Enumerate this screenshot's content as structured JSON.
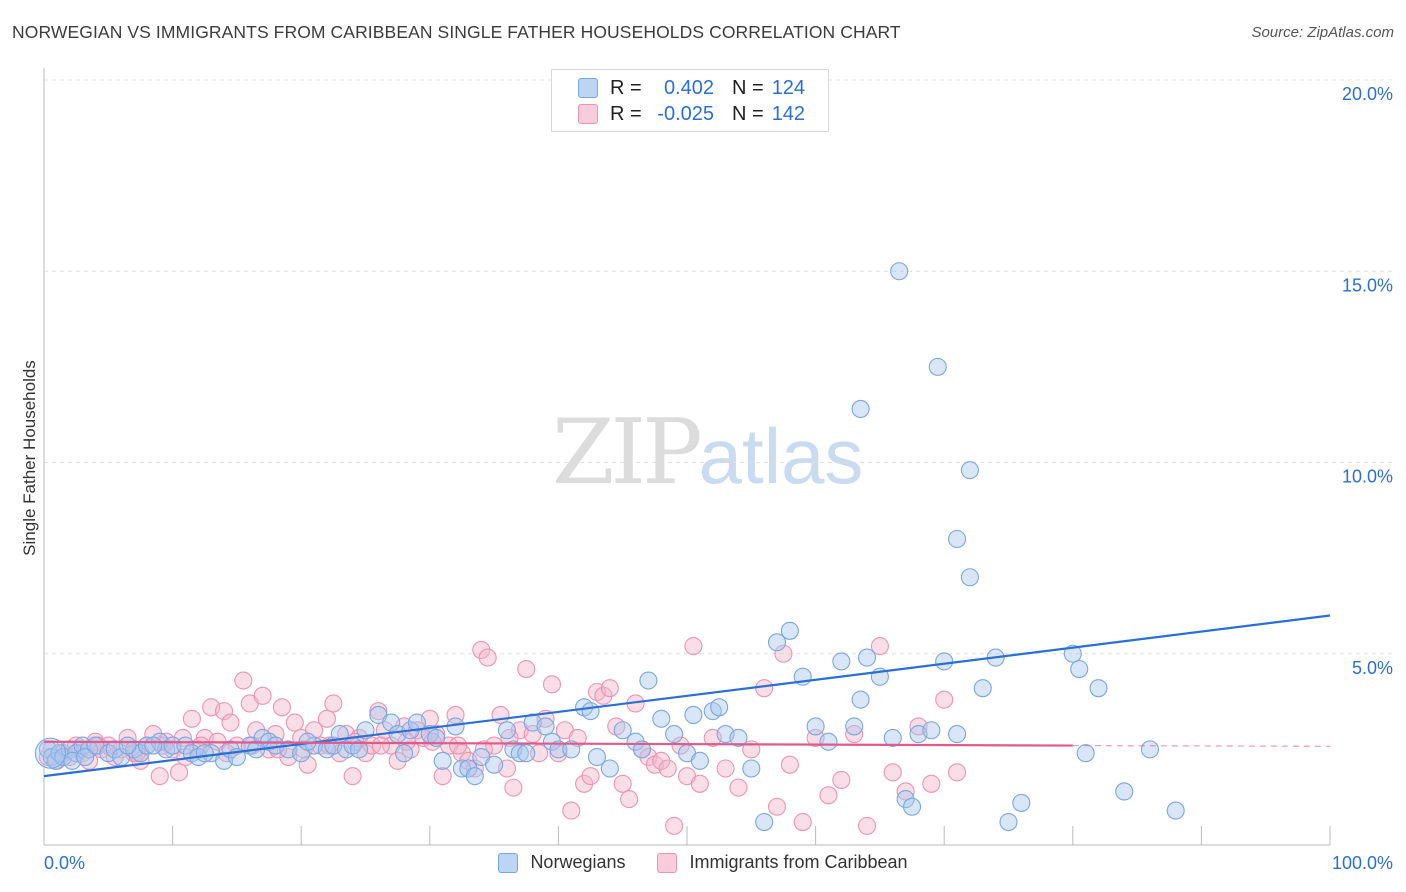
{
  "title": "NORWEGIAN VS IMMIGRANTS FROM CARIBBEAN SINGLE FATHER HOUSEHOLDS CORRELATION CHART",
  "source": "Source: ZipAtlas.com",
  "watermark": {
    "zip": "ZIP",
    "atlas": "atlas"
  },
  "colors": {
    "blue": "#2a6fd6",
    "blue_fill": "#a8c8f0",
    "pink": "#e05a8a",
    "pink_fill": "#f5b5ca",
    "grid": "#dcdcdc"
  },
  "legend": {
    "rows": [
      {
        "r_label": "R =",
        "r_value": "0.402",
        "n_label": "N =",
        "n_value": "124",
        "color": "blue"
      },
      {
        "r_label": "R =",
        "r_value": "-0.025",
        "n_label": "N =",
        "n_value": "142",
        "color": "pink"
      }
    ]
  },
  "bottom_legend": [
    "Norwegians",
    "Immigrants from Caribbean"
  ],
  "chart_data": {
    "type": "scatter",
    "title": "NORWEGIAN VS IMMIGRANTS FROM CARIBBEAN SINGLE FATHER HOUSEHOLDS CORRELATION CHART",
    "xlabel": "",
    "ylabel": "Single Father Households",
    "xlim": [
      0,
      100
    ],
    "ylim": [
      0,
      20
    ],
    "x_tick_labels": [
      "0.0%",
      "100.0%"
    ],
    "y_ticks": [
      5,
      10,
      15,
      20
    ],
    "y_tick_labels": [
      "5.0%",
      "10.0%",
      "15.0%",
      "20.0%"
    ],
    "grid": true,
    "legend_placement": "top-center",
    "series": [
      {
        "name": "Norwegians",
        "color": "blue",
        "trend": {
          "x": [
            0,
            100
          ],
          "y": [
            1.8,
            6.0
          ]
        },
        "points": [
          [
            0.3,
            2.5
          ],
          [
            0.6,
            2.3
          ],
          [
            0.9,
            2.2
          ],
          [
            1.2,
            2.4
          ],
          [
            1.5,
            2.3
          ],
          [
            2,
            2.5
          ],
          [
            2.5,
            2.4
          ],
          [
            3,
            2.6
          ],
          [
            3.5,
            2.5
          ],
          [
            4,
            2.6
          ],
          [
            5,
            2.4
          ],
          [
            5.5,
            2.5
          ],
          [
            6,
            2.3
          ],
          [
            7,
            2.5
          ],
          [
            7.5,
            2.4
          ],
          [
            8,
            2.6
          ],
          [
            9,
            2.7
          ],
          [
            9.5,
            2.5
          ],
          [
            10,
            2.6
          ],
          [
            11,
            2.6
          ],
          [
            11.5,
            2.4
          ],
          [
            12,
            2.3
          ],
          [
            13,
            2.4
          ],
          [
            14,
            2.2
          ],
          [
            14.5,
            2.5
          ],
          [
            15,
            2.3
          ],
          [
            16,
            2.6
          ],
          [
            17,
            2.8
          ],
          [
            17.5,
            2.7
          ],
          [
            18,
            2.6
          ],
          [
            19,
            2.5
          ],
          [
            20,
            2.4
          ],
          [
            21,
            2.6
          ],
          [
            22,
            2.5
          ],
          [
            22.5,
            2.6
          ],
          [
            23,
            2.9
          ],
          [
            23.5,
            2.5
          ],
          [
            24,
            2.6
          ],
          [
            25,
            3.0
          ],
          [
            26,
            3.4
          ],
          [
            27,
            3.2
          ],
          [
            27.5,
            2.9
          ],
          [
            28,
            2.4
          ],
          [
            28.5,
            3.0
          ],
          [
            29,
            3.2
          ],
          [
            30,
            2.9
          ],
          [
            30.5,
            2.8
          ],
          [
            31,
            2.2
          ],
          [
            32,
            3.1
          ],
          [
            32.5,
            2.0
          ],
          [
            33,
            2.0
          ],
          [
            33.5,
            1.8
          ],
          [
            34,
            2.3
          ],
          [
            35,
            2.1
          ],
          [
            36,
            3.0
          ],
          [
            36.5,
            2.5
          ],
          [
            37,
            2.4
          ],
          [
            37.5,
            2.4
          ],
          [
            38,
            3.2
          ],
          [
            39,
            3.1
          ],
          [
            39.5,
            2.7
          ],
          [
            40,
            2.5
          ],
          [
            41,
            2.5
          ],
          [
            42,
            3.6
          ],
          [
            42.5,
            3.5
          ],
          [
            43,
            2.3
          ],
          [
            44,
            2.0
          ],
          [
            45,
            3.0
          ],
          [
            46,
            2.7
          ],
          [
            46.5,
            2.5
          ],
          [
            47,
            4.3
          ],
          [
            48,
            3.3
          ],
          [
            49,
            2.9
          ],
          [
            50,
            2.4
          ],
          [
            50.5,
            3.4
          ],
          [
            51,
            2.2
          ],
          [
            52,
            3.5
          ],
          [
            52.5,
            3.6
          ],
          [
            53,
            2.9
          ],
          [
            54,
            2.8
          ],
          [
            55,
            2.0
          ],
          [
            56,
            0.6
          ],
          [
            57,
            5.3
          ],
          [
            58,
            5.6
          ],
          [
            59,
            4.4
          ],
          [
            60,
            3.1
          ],
          [
            61,
            2.7
          ],
          [
            62,
            4.8
          ],
          [
            63,
            3.1
          ],
          [
            63.5,
            3.8
          ],
          [
            64,
            4.9
          ],
          [
            65,
            4.4
          ],
          [
            66,
            2.8
          ],
          [
            67,
            1.2
          ],
          [
            67.5,
            1.0
          ],
          [
            68,
            2.9
          ],
          [
            69,
            3.0
          ],
          [
            70,
            4.8
          ],
          [
            71,
            8.0
          ],
          [
            72,
            7.0
          ],
          [
            73,
            4.1
          ],
          [
            74,
            4.9
          ],
          [
            75,
            0.6
          ],
          [
            76,
            1.1
          ],
          [
            71,
            2.9
          ],
          [
            72,
            9.8
          ],
          [
            80,
            5.0
          ],
          [
            80.5,
            4.6
          ],
          [
            82,
            4.1
          ],
          [
            84,
            1.4
          ],
          [
            66.5,
            15.0
          ],
          [
            69.5,
            12.5
          ],
          [
            63.5,
            11.4
          ],
          [
            88,
            0.9
          ],
          [
            2.2,
            2.2
          ],
          [
            3.2,
            2.3
          ],
          [
            6.5,
            2.6
          ],
          [
            8.5,
            2.6
          ],
          [
            12.5,
            2.4
          ],
          [
            16.5,
            2.5
          ],
          [
            20.5,
            2.7
          ],
          [
            24.5,
            2.5
          ],
          [
            81,
            2.4
          ],
          [
            86,
            2.5
          ]
        ]
      },
      {
        "name": "Immigrants from Caribbean",
        "color": "pink",
        "trend": {
          "x": [
            0,
            80
          ],
          "y": [
            2.7,
            2.6
          ]
        },
        "points": [
          [
            0.3,
            2.3
          ],
          [
            0.6,
            2.5
          ],
          [
            1,
            2.2
          ],
          [
            1.5,
            2.4
          ],
          [
            2,
            2.3
          ],
          [
            2.5,
            2.6
          ],
          [
            3,
            2.4
          ],
          [
            3.5,
            2.2
          ],
          [
            4,
            2.7
          ],
          [
            4.5,
            2.5
          ],
          [
            5,
            2.6
          ],
          [
            5.5,
            2.3
          ],
          [
            6,
            2.5
          ],
          [
            6.5,
            2.8
          ],
          [
            7,
            2.4
          ],
          [
            7.5,
            2.2
          ],
          [
            8,
            2.6
          ],
          [
            8.5,
            2.9
          ],
          [
            9,
            1.8
          ],
          [
            9.5,
            2.7
          ],
          [
            10,
            2.5
          ],
          [
            10.5,
            1.9
          ],
          [
            11,
            2.3
          ],
          [
            11.5,
            3.3
          ],
          [
            12,
            2.5
          ],
          [
            12.5,
            2.8
          ],
          [
            13,
            3.6
          ],
          [
            13.5,
            2.7
          ],
          [
            14,
            3.5
          ],
          [
            14.5,
            3.2
          ],
          [
            15,
            2.6
          ],
          [
            15.5,
            4.3
          ],
          [
            16,
            3.7
          ],
          [
            16.5,
            3.0
          ],
          [
            17,
            3.9
          ],
          [
            17.5,
            2.5
          ],
          [
            18,
            2.9
          ],
          [
            18.5,
            3.6
          ],
          [
            19,
            2.3
          ],
          [
            19.5,
            3.2
          ],
          [
            20,
            2.8
          ],
          [
            20.5,
            2.1
          ],
          [
            21,
            3.0
          ],
          [
            21.5,
            2.6
          ],
          [
            22,
            3.3
          ],
          [
            22.5,
            3.7
          ],
          [
            23,
            2.4
          ],
          [
            23.5,
            2.9
          ],
          [
            24,
            1.8
          ],
          [
            24.5,
            2.8
          ],
          [
            25,
            2.4
          ],
          [
            25.5,
            2.6
          ],
          [
            26,
            3.5
          ],
          [
            26.5,
            3.0
          ],
          [
            27,
            2.6
          ],
          [
            27.5,
            2.2
          ],
          [
            28,
            3.1
          ],
          [
            28.5,
            2.5
          ],
          [
            29,
            3.0
          ],
          [
            29.5,
            2.8
          ],
          [
            30,
            3.3
          ],
          [
            30.5,
            2.9
          ],
          [
            31,
            1.8
          ],
          [
            31.5,
            2.6
          ],
          [
            32,
            3.4
          ],
          [
            32.5,
            2.4
          ],
          [
            33,
            2.2
          ],
          [
            33.5,
            2.0
          ],
          [
            34,
            5.1
          ],
          [
            34.5,
            4.9
          ],
          [
            35,
            2.6
          ],
          [
            35.5,
            3.4
          ],
          [
            36,
            2.0
          ],
          [
            36.5,
            1.5
          ],
          [
            37,
            3.0
          ],
          [
            37.5,
            4.6
          ],
          [
            38,
            2.9
          ],
          [
            38.5,
            2.4
          ],
          [
            39,
            3.3
          ],
          [
            39.5,
            4.2
          ],
          [
            40,
            2.4
          ],
          [
            40.5,
            3.0
          ],
          [
            41,
            0.9
          ],
          [
            41.5,
            2.8
          ],
          [
            42,
            1.6
          ],
          [
            42.5,
            1.8
          ],
          [
            43,
            4.0
          ],
          [
            43.5,
            3.9
          ],
          [
            44,
            4.1
          ],
          [
            44.5,
            3.1
          ],
          [
            45,
            1.6
          ],
          [
            45.5,
            1.2
          ],
          [
            46,
            3.7
          ],
          [
            46.5,
            2.5
          ],
          [
            47,
            2.3
          ],
          [
            47.5,
            2.1
          ],
          [
            48,
            2.2
          ],
          [
            48.5,
            2.0
          ],
          [
            49,
            0.5
          ],
          [
            49.5,
            2.6
          ],
          [
            50,
            1.8
          ],
          [
            50.5,
            5.2
          ],
          [
            51,
            1.6
          ],
          [
            52,
            2.8
          ],
          [
            53,
            2.0
          ],
          [
            54,
            1.5
          ],
          [
            55,
            2.5
          ],
          [
            56,
            4.1
          ],
          [
            57,
            1.0
          ],
          [
            57.5,
            5.0
          ],
          [
            58,
            2.1
          ],
          [
            59,
            0.6
          ],
          [
            60,
            2.8
          ],
          [
            61,
            1.3
          ],
          [
            62,
            1.7
          ],
          [
            63,
            2.9
          ],
          [
            64,
            0.5
          ],
          [
            65,
            5.2
          ],
          [
            66,
            1.9
          ],
          [
            67,
            1.4
          ],
          [
            68,
            3.1
          ],
          [
            69,
            1.6
          ],
          [
            70,
            3.8
          ],
          [
            71,
            1.9
          ],
          [
            2.8,
            2.5
          ],
          [
            4.2,
            2.6
          ],
          [
            7.2,
            2.4
          ],
          [
            9.2,
            2.6
          ],
          [
            10.8,
            2.8
          ],
          [
            12.2,
            2.6
          ],
          [
            14.2,
            2.4
          ],
          [
            16.2,
            2.6
          ],
          [
            18.2,
            2.5
          ],
          [
            20.2,
            2.5
          ],
          [
            22.2,
            2.6
          ],
          [
            24.2,
            2.7
          ],
          [
            26.2,
            2.6
          ],
          [
            28.2,
            2.7
          ],
          [
            30.2,
            2.7
          ],
          [
            32.2,
            2.6
          ],
          [
            34.2,
            2.5
          ],
          [
            36.2,
            2.8
          ]
        ]
      }
    ]
  }
}
